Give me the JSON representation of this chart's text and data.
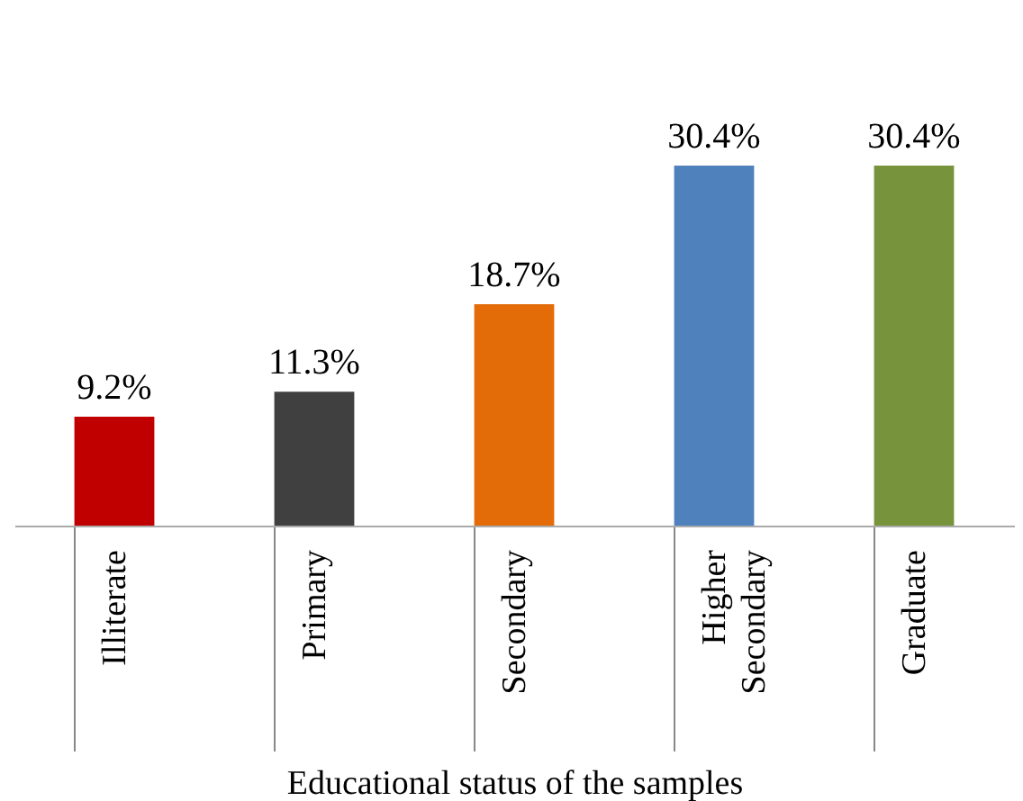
{
  "chart_data": {
    "type": "bar",
    "xlabel": "Educational status of the samples",
    "categories": [
      "Illiterate",
      "Primary",
      "Secondary",
      "Higher Secondary",
      "Graduate"
    ],
    "values": [
      9.2,
      11.3,
      18.7,
      30.4,
      30.4
    ],
    "colors": [
      "#c00000",
      "#404040",
      "#e36c09",
      "#4f81bd",
      "#77933c"
    ],
    "value_labels": [
      "9.2%",
      "11.3%",
      "18.7%",
      "30.4%",
      "30.4%"
    ],
    "tick_labels": "x"
  }
}
